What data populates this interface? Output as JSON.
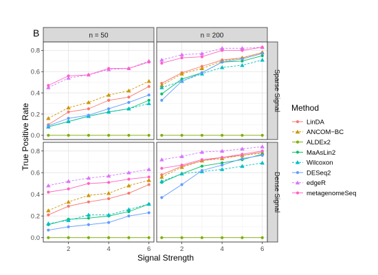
{
  "chart_data": {
    "type": "line",
    "tag": "B",
    "xlabel": "Signal Strength",
    "ylabel": "True Positive Rate",
    "x": [
      1,
      2,
      3,
      4,
      5,
      6
    ],
    "xlim": [
      0.75,
      6.25
    ],
    "ylim": [
      -0.04,
      0.88
    ],
    "x_ticks": [
      2,
      4,
      6
    ],
    "y_ticks": [
      0.0,
      0.2,
      0.4,
      0.6,
      0.8
    ],
    "y_tick_labels": [
      "0.0",
      "0.2",
      "0.4",
      "0.6",
      "0.8"
    ],
    "grid": true,
    "col_facets": [
      "n = 50",
      "n = 200"
    ],
    "row_facets": [
      "Sparse Signal",
      "Dense Signal"
    ],
    "legend": {
      "title": "Method",
      "position": "right",
      "entries": [
        "LinDA",
        "ANCOM−BC",
        "ALDEx2",
        "MaAsLin2",
        "Wilcoxon",
        "DESeq2",
        "edgeR",
        "metagenomeSeq"
      ]
    },
    "methods": [
      {
        "name": "LinDA",
        "color": "#F8766D",
        "shape": "circle",
        "dash": false
      },
      {
        "name": "ANCOM−BC",
        "color": "#CD9600",
        "shape": "triangle",
        "dash": true
      },
      {
        "name": "ALDEx2",
        "color": "#7CAE00",
        "shape": "circle",
        "dash": false
      },
      {
        "name": "MaAsLin2",
        "color": "#00BE67",
        "shape": "circle",
        "dash": false
      },
      {
        "name": "Wilcoxon",
        "color": "#00BFC4",
        "shape": "triangle",
        "dash": true
      },
      {
        "name": "DESeq2",
        "color": "#619CFF",
        "shape": "circle",
        "dash": false
      },
      {
        "name": "edgeR",
        "color": "#D874FD",
        "shape": "triangle",
        "dash": true
      },
      {
        "name": "metagenomeSeq",
        "color": "#FF61C3",
        "shape": "circle",
        "dash": false
      }
    ],
    "panels": [
      {
        "row": "Sparse Signal",
        "col": "n = 50",
        "series": [
          {
            "name": "LinDA",
            "values": [
              0.1,
              0.22,
              0.25,
              0.33,
              0.36,
              0.46
            ]
          },
          {
            "name": "ANCOM−BC",
            "values": [
              0.16,
              0.26,
              0.31,
              0.38,
              0.42,
              0.51
            ]
          },
          {
            "name": "ALDEx2",
            "values": [
              0.0,
              0.0,
              0.0,
              0.0,
              0.0,
              0.0
            ]
          },
          {
            "name": "MaAsLin2",
            "values": [
              0.08,
              0.13,
              0.18,
              0.22,
              0.25,
              0.33
            ]
          },
          {
            "name": "Wilcoxon",
            "values": [
              0.08,
              0.13,
              0.18,
              0.22,
              0.25,
              0.3
            ]
          },
          {
            "name": "DESeq2",
            "values": [
              0.09,
              0.16,
              0.19,
              0.25,
              0.31,
              0.38
            ]
          },
          {
            "name": "edgeR",
            "values": [
              0.45,
              0.54,
              0.57,
              0.62,
              0.63,
              0.7
            ]
          },
          {
            "name": "metagenomeSeq",
            "values": [
              0.47,
              0.56,
              0.57,
              0.63,
              0.63,
              0.69
            ]
          }
        ]
      },
      {
        "row": "Sparse Signal",
        "col": "n = 200",
        "series": [
          {
            "name": "LinDA",
            "values": [
              0.49,
              0.59,
              0.65,
              0.71,
              0.73,
              0.78
            ]
          },
          {
            "name": "ANCOM−BC",
            "values": [
              0.47,
              0.58,
              0.63,
              0.7,
              0.73,
              0.78
            ]
          },
          {
            "name": "ALDEx2",
            "values": [
              0.0,
              0.0,
              0.0,
              0.0,
              0.0,
              0.0
            ]
          },
          {
            "name": "MaAsLin2",
            "values": [
              0.39,
              0.53,
              0.59,
              0.69,
              0.7,
              0.75
            ]
          },
          {
            "name": "Wilcoxon",
            "values": [
              0.45,
              0.51,
              0.58,
              0.64,
              0.66,
              0.71
            ]
          },
          {
            "name": "DESeq2",
            "values": [
              0.33,
              0.51,
              0.59,
              0.69,
              0.72,
              0.77
            ]
          },
          {
            "name": "edgeR",
            "values": [
              0.71,
              0.76,
              0.77,
              0.82,
              0.82,
              0.83
            ]
          },
          {
            "name": "metagenomeSeq",
            "values": [
              0.68,
              0.73,
              0.74,
              0.8,
              0.8,
              0.83
            ]
          }
        ]
      },
      {
        "row": "Dense Signal",
        "col": "n = 50",
        "series": [
          {
            "name": "LinDA",
            "values": [
              0.21,
              0.29,
              0.33,
              0.36,
              0.41,
              0.49
            ]
          },
          {
            "name": "ANCOM−BC",
            "values": [
              0.25,
              0.33,
              0.39,
              0.41,
              0.48,
              0.53
            ]
          },
          {
            "name": "ALDEx2",
            "values": [
              0.0,
              0.0,
              0.0,
              0.0,
              0.0,
              0.0
            ]
          },
          {
            "name": "MaAsLin2",
            "values": [
              0.12,
              0.17,
              0.18,
              0.2,
              0.24,
              0.31
            ]
          },
          {
            "name": "Wilcoxon",
            "values": [
              0.13,
              0.16,
              0.21,
              0.21,
              0.26,
              0.31
            ]
          },
          {
            "name": "DESeq2",
            "values": [
              0.07,
              0.1,
              0.12,
              0.14,
              0.2,
              0.23
            ]
          },
          {
            "name": "edgeR",
            "values": [
              0.48,
              0.52,
              0.55,
              0.57,
              0.6,
              0.63
            ]
          },
          {
            "name": "metagenomeSeq",
            "values": [
              0.42,
              0.45,
              0.5,
              0.51,
              0.54,
              0.56
            ]
          }
        ]
      },
      {
        "row": "Dense Signal",
        "col": "n = 200",
        "series": [
          {
            "name": "LinDA",
            "values": [
              0.58,
              0.66,
              0.71,
              0.74,
              0.76,
              0.79
            ]
          },
          {
            "name": "ANCOM−BC",
            "values": [
              0.56,
              0.65,
              0.71,
              0.73,
              0.76,
              0.78
            ]
          },
          {
            "name": "ALDEx2",
            "values": [
              0.0,
              0.0,
              0.0,
              0.0,
              0.0,
              0.0
            ]
          },
          {
            "name": "MaAsLin2",
            "values": [
              0.51,
              0.59,
              0.66,
              0.69,
              0.72,
              0.77
            ]
          },
          {
            "name": "Wilcoxon",
            "values": [
              0.52,
              0.59,
              0.61,
              0.63,
              0.66,
              0.69
            ]
          },
          {
            "name": "DESeq2",
            "values": [
              0.37,
              0.49,
              0.62,
              0.67,
              0.73,
              0.76
            ]
          },
          {
            "name": "edgeR",
            "values": [
              0.72,
              0.75,
              0.79,
              0.8,
              0.82,
              0.84
            ]
          },
          {
            "name": "metagenomeSeq",
            "values": [
              0.64,
              0.67,
              0.72,
              0.74,
              0.77,
              0.8
            ]
          }
        ]
      }
    ]
  }
}
